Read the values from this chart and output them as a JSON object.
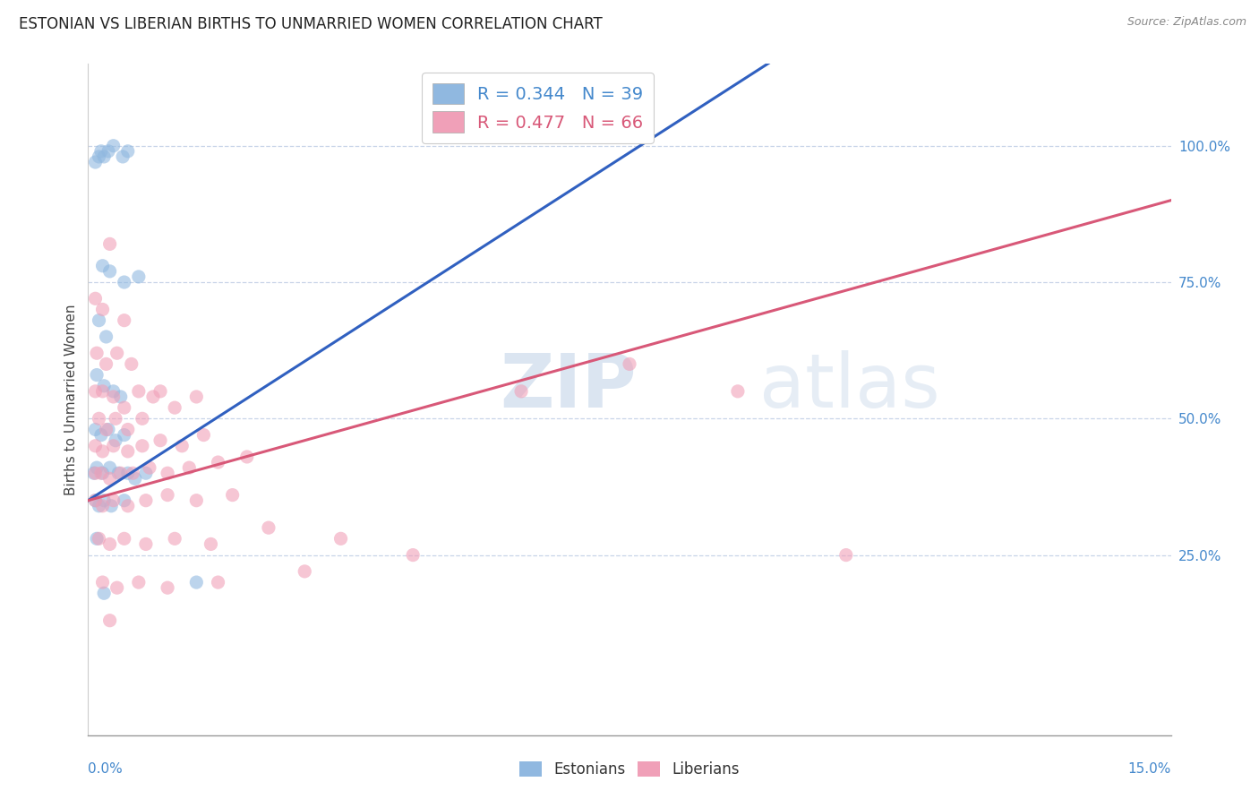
{
  "title": "ESTONIAN VS LIBERIAN BIRTHS TO UNMARRIED WOMEN CORRELATION CHART",
  "source_text": "Source: ZipAtlas.com",
  "ylabel": "Births to Unmarried Women",
  "xlim": [
    0.0,
    15.0
  ],
  "ylim": [
    -8.0,
    115.0
  ],
  "ytick_labels": [
    "25.0%",
    "50.0%",
    "75.0%",
    "100.0%"
  ],
  "ytick_values": [
    25,
    50,
    75,
    100
  ],
  "background_color": "#ffffff",
  "estonian_color": "#90b8e0",
  "liberian_color": "#f0a0b8",
  "estonian_line_color": "#3060c0",
  "liberian_line_color": "#d85878",
  "grid_color": "#c8d4e8",
  "title_fontsize": 12,
  "estonian_scatter": [
    [
      0.1,
      97
    ],
    [
      0.15,
      98
    ],
    [
      0.18,
      99
    ],
    [
      0.22,
      98
    ],
    [
      0.28,
      99
    ],
    [
      0.35,
      100
    ],
    [
      0.48,
      98
    ],
    [
      0.55,
      99
    ],
    [
      0.2,
      78
    ],
    [
      0.3,
      77
    ],
    [
      0.5,
      75
    ],
    [
      0.7,
      76
    ],
    [
      0.15,
      68
    ],
    [
      0.25,
      65
    ],
    [
      0.12,
      58
    ],
    [
      0.22,
      56
    ],
    [
      0.35,
      55
    ],
    [
      0.45,
      54
    ],
    [
      0.1,
      48
    ],
    [
      0.18,
      47
    ],
    [
      0.28,
      48
    ],
    [
      0.38,
      46
    ],
    [
      0.5,
      47
    ],
    [
      0.08,
      40
    ],
    [
      0.12,
      41
    ],
    [
      0.2,
      40
    ],
    [
      0.3,
      41
    ],
    [
      0.42,
      40
    ],
    [
      0.55,
      40
    ],
    [
      0.65,
      39
    ],
    [
      0.8,
      40
    ],
    [
      0.1,
      35
    ],
    [
      0.15,
      34
    ],
    [
      0.22,
      35
    ],
    [
      0.32,
      34
    ],
    [
      0.5,
      35
    ],
    [
      0.12,
      28
    ],
    [
      0.22,
      18
    ],
    [
      1.5,
      20
    ]
  ],
  "liberian_scatter": [
    [
      0.3,
      82
    ],
    [
      0.1,
      72
    ],
    [
      0.2,
      70
    ],
    [
      0.5,
      68
    ],
    [
      0.12,
      62
    ],
    [
      0.25,
      60
    ],
    [
      0.4,
      62
    ],
    [
      0.6,
      60
    ],
    [
      0.1,
      55
    ],
    [
      0.2,
      55
    ],
    [
      0.35,
      54
    ],
    [
      0.5,
      52
    ],
    [
      0.7,
      55
    ],
    [
      0.9,
      54
    ],
    [
      0.15,
      50
    ],
    [
      0.25,
      48
    ],
    [
      0.38,
      50
    ],
    [
      0.55,
      48
    ],
    [
      0.75,
      50
    ],
    [
      1.0,
      55
    ],
    [
      1.2,
      52
    ],
    [
      1.5,
      54
    ],
    [
      0.1,
      45
    ],
    [
      0.2,
      44
    ],
    [
      0.35,
      45
    ],
    [
      0.55,
      44
    ],
    [
      0.75,
      45
    ],
    [
      1.0,
      46
    ],
    [
      1.3,
      45
    ],
    [
      1.6,
      47
    ],
    [
      0.1,
      40
    ],
    [
      0.18,
      40
    ],
    [
      0.3,
      39
    ],
    [
      0.45,
      40
    ],
    [
      0.62,
      40
    ],
    [
      0.85,
      41
    ],
    [
      1.1,
      40
    ],
    [
      1.4,
      41
    ],
    [
      1.8,
      42
    ],
    [
      2.2,
      43
    ],
    [
      0.1,
      35
    ],
    [
      0.2,
      34
    ],
    [
      0.35,
      35
    ],
    [
      0.55,
      34
    ],
    [
      0.8,
      35
    ],
    [
      1.1,
      36
    ],
    [
      1.5,
      35
    ],
    [
      2.0,
      36
    ],
    [
      0.15,
      28
    ],
    [
      0.3,
      27
    ],
    [
      0.5,
      28
    ],
    [
      0.8,
      27
    ],
    [
      1.2,
      28
    ],
    [
      1.7,
      27
    ],
    [
      2.5,
      30
    ],
    [
      3.5,
      28
    ],
    [
      0.2,
      20
    ],
    [
      0.4,
      19
    ],
    [
      0.7,
      20
    ],
    [
      1.1,
      19
    ],
    [
      1.8,
      20
    ],
    [
      3.0,
      22
    ],
    [
      0.3,
      13
    ],
    [
      4.5,
      25
    ],
    [
      6.0,
      55
    ],
    [
      7.5,
      60
    ],
    [
      9.0,
      55
    ],
    [
      10.5,
      25
    ]
  ]
}
